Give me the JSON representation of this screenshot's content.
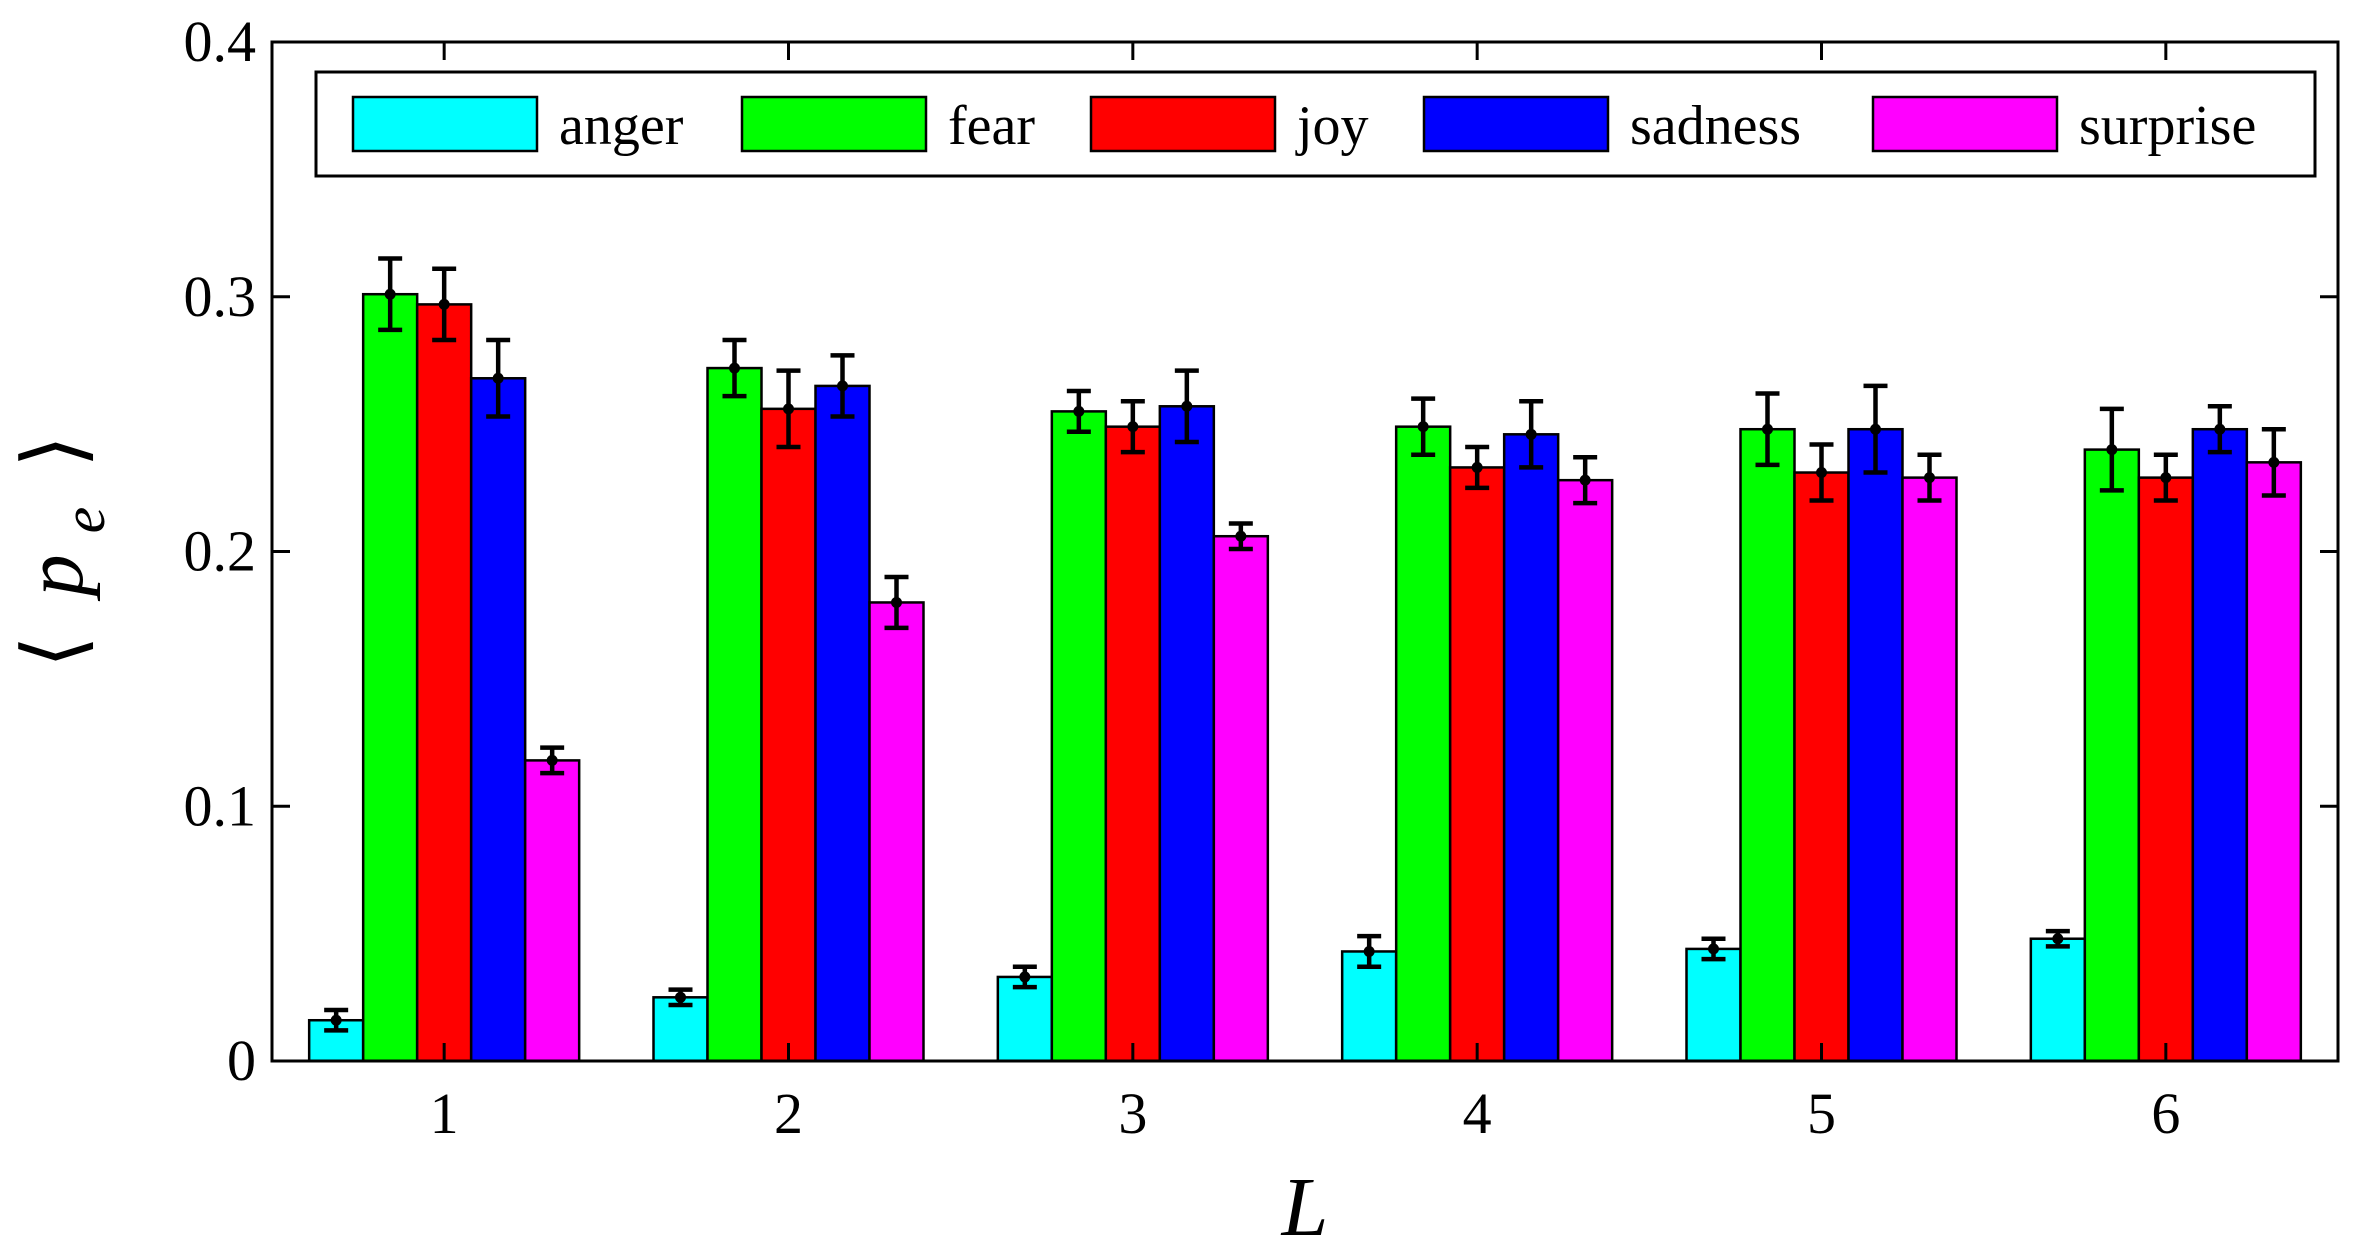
{
  "chart_data": {
    "type": "bar",
    "title": "",
    "xlabel": "L",
    "ylabel": {
      "open": "⟨",
      "main": "p",
      "sub": "e",
      "close": "⟩"
    },
    "categories": [
      "1",
      "2",
      "3",
      "4",
      "5",
      "6"
    ],
    "ylim": [
      0,
      0.4
    ],
    "yticks": [
      0,
      0.1,
      0.2,
      0.3,
      0.4
    ],
    "ytick_labels": [
      "0",
      "0.1",
      "0.2",
      "0.3",
      "0.4"
    ],
    "grid": false,
    "legend_position": "top",
    "error_bars": true,
    "series": [
      {
        "name": "anger",
        "color": "#00ffff",
        "values": [
          0.016,
          0.025,
          0.033,
          0.043,
          0.044,
          0.048
        ],
        "errors": [
          0.004,
          0.003,
          0.004,
          0.006,
          0.004,
          0.003
        ]
      },
      {
        "name": "fear",
        "color": "#00ff00",
        "values": [
          0.301,
          0.272,
          0.255,
          0.249,
          0.248,
          0.24
        ],
        "errors": [
          0.014,
          0.011,
          0.008,
          0.011,
          0.014,
          0.016
        ]
      },
      {
        "name": "joy",
        "color": "#ff0000",
        "values": [
          0.297,
          0.256,
          0.249,
          0.233,
          0.231,
          0.229
        ],
        "errors": [
          0.014,
          0.015,
          0.01,
          0.008,
          0.011,
          0.009
        ]
      },
      {
        "name": "sadness",
        "color": "#0000ff",
        "values": [
          0.268,
          0.265,
          0.257,
          0.246,
          0.248,
          0.248
        ],
        "errors": [
          0.015,
          0.012,
          0.014,
          0.013,
          0.017,
          0.009
        ]
      },
      {
        "name": "surprise",
        "color": "#ff00ff",
        "values": [
          0.118,
          0.18,
          0.206,
          0.228,
          0.229,
          0.235
        ],
        "errors": [
          0.005,
          0.01,
          0.005,
          0.009,
          0.009,
          0.013
        ]
      }
    ]
  }
}
